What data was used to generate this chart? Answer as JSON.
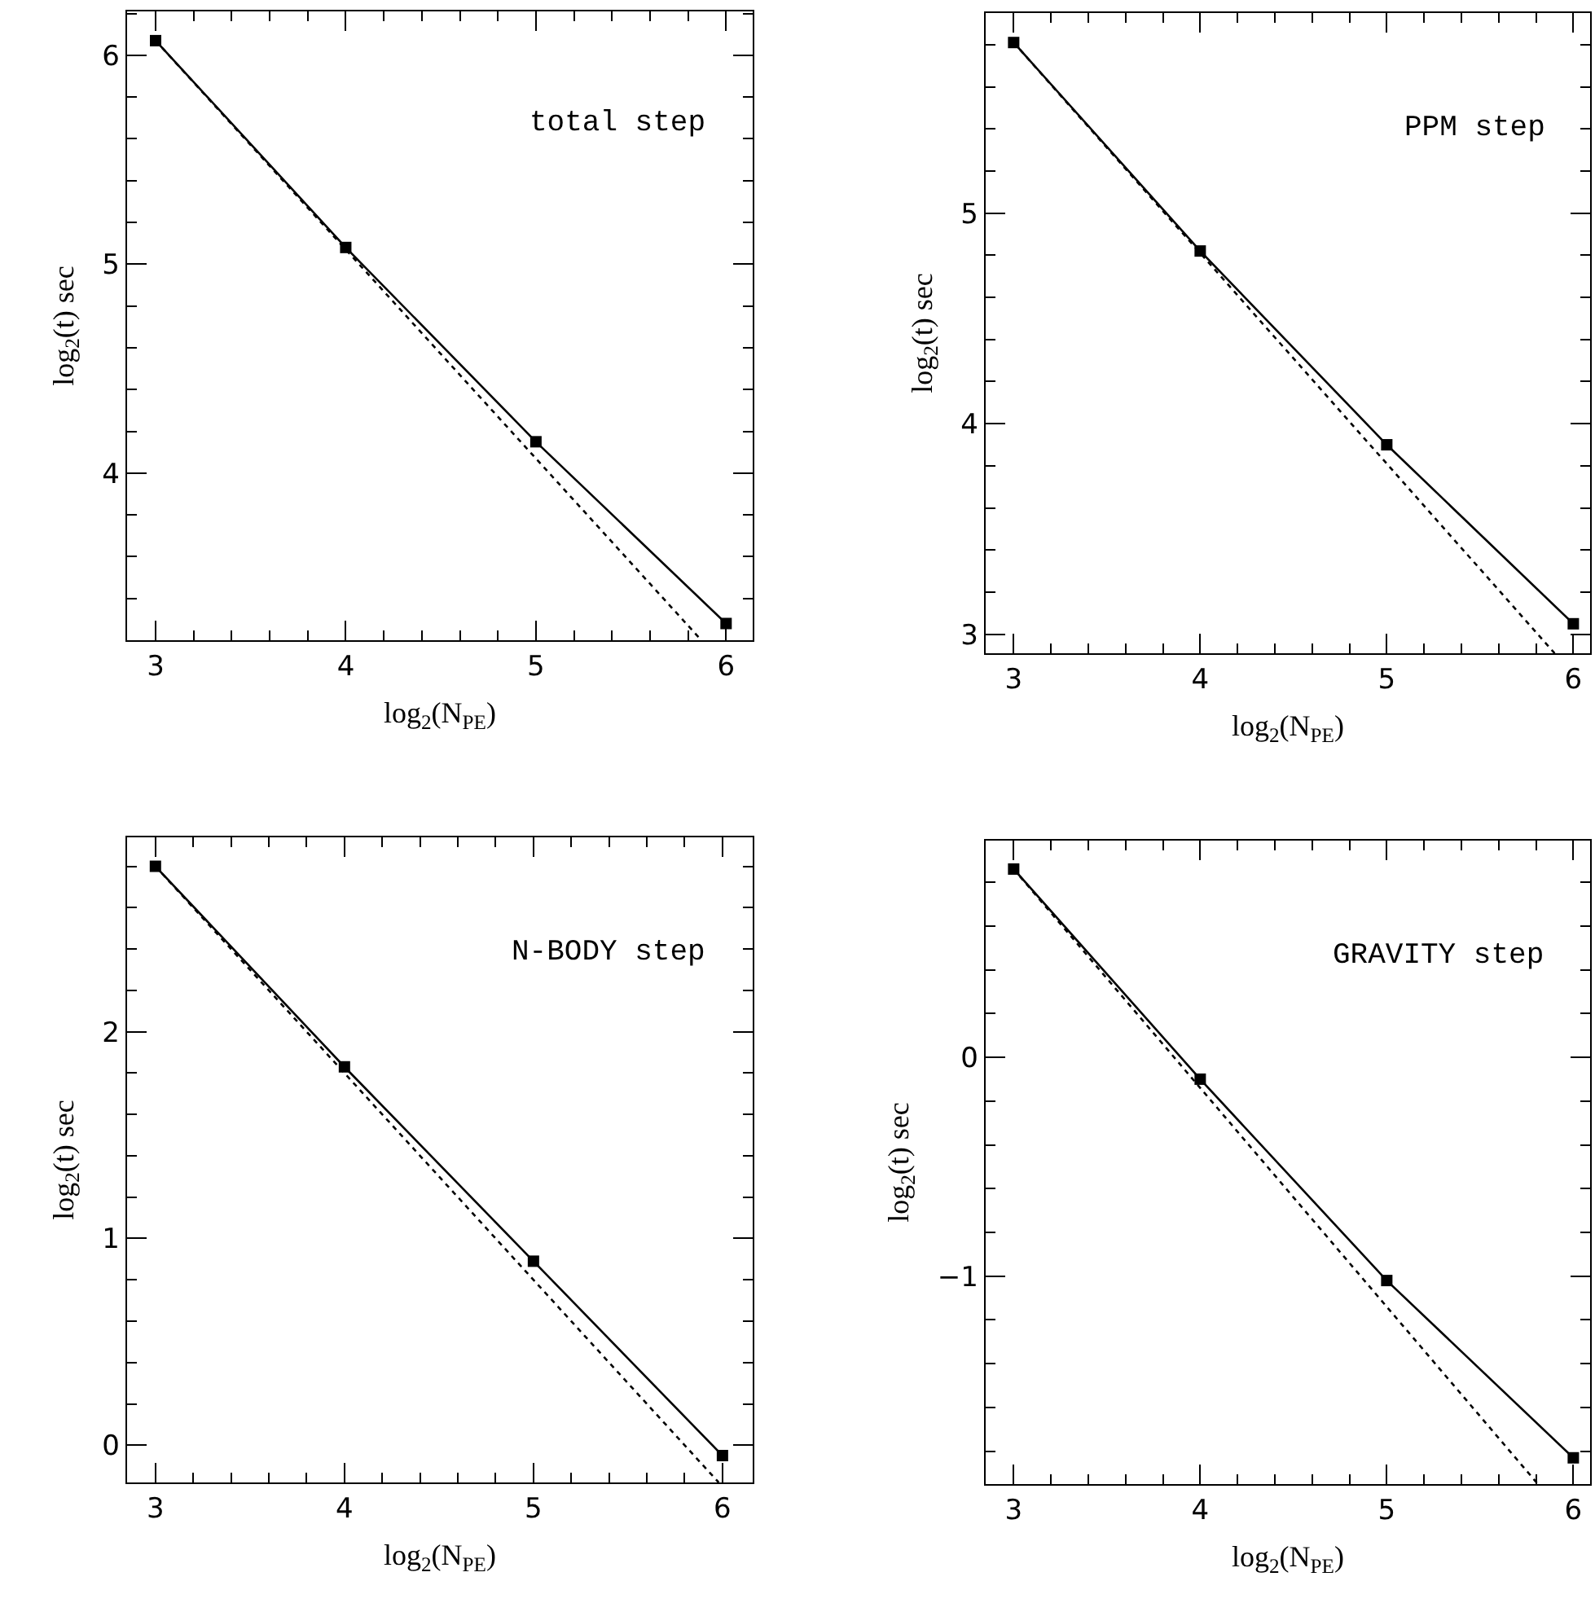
{
  "chart_data": [
    {
      "type": "line",
      "xlabel": "log$_{2}$(N$_{PE}$)",
      "ylabel": "log$_{2}$(t) sec",
      "annotations": [
        "total step"
      ],
      "series": [
        {
          "x": [
            3,
            4,
            5,
            6
          ],
          "values": [
            6.07,
            5.08,
            4.15,
            3.28
          ],
          "color": "#000000",
          "marker": "square",
          "line_style": "solid"
        },
        {
          "x": [
            3,
            5.87
          ],
          "values": [
            6.07,
            3.2
          ],
          "color": "#000000",
          "marker": "none",
          "line_style": "dotted"
        }
      ],
      "xlim": [
        2.85,
        6.14
      ],
      "ylim": [
        3.2,
        6.21
      ],
      "xticks": [
        3,
        4,
        5,
        6,
        {
          "value": 3.2,
          "label": null
        },
        {
          "value": 3.4,
          "label": null
        },
        {
          "value": 3.6,
          "label": null
        },
        {
          "value": 3.8,
          "label": null
        },
        {
          "value": 4.2,
          "label": null
        },
        {
          "value": 4.4,
          "label": null
        },
        {
          "value": 4.6,
          "label": null
        },
        {
          "value": 4.8,
          "label": null
        },
        {
          "value": 5.2,
          "label": null
        },
        {
          "value": 5.4,
          "label": null
        },
        {
          "value": 5.6,
          "label": null
        },
        {
          "value": 5.8,
          "label": null
        }
      ],
      "yticks": [
        4,
        5,
        6,
        {
          "value": 3.4,
          "label": null
        },
        {
          "value": 3.6,
          "label": null
        },
        {
          "value": 3.8,
          "label": null
        },
        {
          "value": 4.2,
          "label": null
        },
        {
          "value": 4.4,
          "label": null
        },
        {
          "value": 4.6,
          "label": null
        },
        {
          "value": 4.8,
          "label": null
        },
        {
          "value": 5.2,
          "label": null
        },
        {
          "value": 5.4,
          "label": null
        },
        {
          "value": 5.6,
          "label": null
        },
        {
          "value": 5.8,
          "label": null
        },
        {
          "value": 6.2,
          "label": null
        }
      ]
    },
    {
      "type": "line",
      "xlabel": "log$_{2}$(N$_{PE}$)",
      "ylabel": "log$_{2}$(t) sec",
      "annotations": [
        "PPM step"
      ],
      "series": [
        {
          "x": [
            3,
            4,
            5,
            6
          ],
          "values": [
            5.81,
            4.82,
            3.9,
            3.05
          ],
          "color": "#000000",
          "marker": "square",
          "line_style": "solid"
        },
        {
          "x": [
            3,
            5.9
          ],
          "values": [
            5.81,
            2.91
          ],
          "color": "#000000",
          "marker": "none",
          "line_style": "dotted"
        }
      ],
      "xlim": [
        2.85,
        6.09
      ],
      "ylim": [
        2.91,
        5.95
      ],
      "xticks": [
        3,
        4,
        5,
        6,
        {
          "value": 3.2,
          "label": null
        },
        {
          "value": 3.4,
          "label": null
        },
        {
          "value": 3.6,
          "label": null
        },
        {
          "value": 3.8,
          "label": null
        },
        {
          "value": 4.2,
          "label": null
        },
        {
          "value": 4.4,
          "label": null
        },
        {
          "value": 4.6,
          "label": null
        },
        {
          "value": 4.8,
          "label": null
        },
        {
          "value": 5.2,
          "label": null
        },
        {
          "value": 5.4,
          "label": null
        },
        {
          "value": 5.6,
          "label": null
        },
        {
          "value": 5.8,
          "label": null
        }
      ],
      "yticks": [
        3,
        4,
        5,
        {
          "value": 3.2,
          "label": null
        },
        {
          "value": 3.4,
          "label": null
        },
        {
          "value": 3.6,
          "label": null
        },
        {
          "value": 3.8,
          "label": null
        },
        {
          "value": 4.2,
          "label": null
        },
        {
          "value": 4.4,
          "label": null
        },
        {
          "value": 4.6,
          "label": null
        },
        {
          "value": 4.8,
          "label": null
        },
        {
          "value": 5.2,
          "label": null
        },
        {
          "value": 5.4,
          "label": null
        },
        {
          "value": 5.6,
          "label": null
        },
        {
          "value": 5.8,
          "label": null
        }
      ]
    },
    {
      "type": "line",
      "xlabel": "log$_{2}$(N$_{PE}$)",
      "ylabel": "log$_{2}$(t) sec",
      "annotations": [
        "N-BODY step"
      ],
      "series": [
        {
          "x": [
            3,
            4,
            5,
            6
          ],
          "values": [
            2.8,
            1.83,
            0.89,
            -0.05
          ],
          "color": "#000000",
          "marker": "square",
          "line_style": "solid"
        },
        {
          "x": [
            3,
            5.98
          ],
          "values": [
            2.8,
            -0.18
          ],
          "color": "#000000",
          "marker": "none",
          "line_style": "dotted"
        }
      ],
      "xlim": [
        2.85,
        6.16
      ],
      "ylim": [
        -0.18,
        2.94
      ],
      "xticks": [
        3,
        4,
        5,
        6,
        {
          "value": 3.2,
          "label": null
        },
        {
          "value": 3.4,
          "label": null
        },
        {
          "value": 3.6,
          "label": null
        },
        {
          "value": 3.8,
          "label": null
        },
        {
          "value": 4.2,
          "label": null
        },
        {
          "value": 4.4,
          "label": null
        },
        {
          "value": 4.6,
          "label": null
        },
        {
          "value": 4.8,
          "label": null
        },
        {
          "value": 5.2,
          "label": null
        },
        {
          "value": 5.4,
          "label": null
        },
        {
          "value": 5.6,
          "label": null
        },
        {
          "value": 5.8,
          "label": null
        }
      ],
      "yticks": [
        0,
        1,
        2,
        {
          "value": 0.2,
          "label": null
        },
        {
          "value": 0.4,
          "label": null
        },
        {
          "value": 0.6,
          "label": null
        },
        {
          "value": 0.8,
          "label": null
        },
        {
          "value": 1.2,
          "label": null
        },
        {
          "value": 1.4,
          "label": null
        },
        {
          "value": 1.6,
          "label": null
        },
        {
          "value": 1.8,
          "label": null
        },
        {
          "value": 2.2,
          "label": null
        },
        {
          "value": 2.4,
          "label": null
        },
        {
          "value": 2.6,
          "label": null
        },
        {
          "value": 2.8,
          "label": null
        }
      ]
    },
    {
      "type": "line",
      "xlabel": "log$_{2}$(N$_{PE}$)",
      "ylabel": "log$_{2}$(t) sec",
      "annotations": [
        "GRAVITY step"
      ],
      "series": [
        {
          "x": [
            3,
            4,
            5,
            6
          ],
          "values": [
            0.86,
            -0.1,
            -1.02,
            -1.83
          ],
          "color": "#000000",
          "marker": "square",
          "line_style": "solid"
        },
        {
          "x": [
            3,
            5.81
          ],
          "values": [
            0.86,
            -1.95
          ],
          "color": "#000000",
          "marker": "none",
          "line_style": "dotted"
        }
      ],
      "xlim": [
        2.85,
        6.09
      ],
      "ylim": [
        -1.95,
        0.99
      ],
      "xticks": [
        3,
        4,
        5,
        6,
        {
          "value": 3.2,
          "label": null
        },
        {
          "value": 3.4,
          "label": null
        },
        {
          "value": 3.6,
          "label": null
        },
        {
          "value": 3.8,
          "label": null
        },
        {
          "value": 4.2,
          "label": null
        },
        {
          "value": 4.4,
          "label": null
        },
        {
          "value": 4.6,
          "label": null
        },
        {
          "value": 4.8,
          "label": null
        },
        {
          "value": 5.2,
          "label": null
        },
        {
          "value": 5.4,
          "label": null
        },
        {
          "value": 5.6,
          "label": null
        },
        {
          "value": 5.8,
          "label": null
        }
      ],
      "yticks": [
        -1,
        0,
        {
          "value": -1.8,
          "label": null
        },
        {
          "value": -1.6,
          "label": null
        },
        {
          "value": -1.4,
          "label": null
        },
        {
          "value": -1.2,
          "label": null
        },
        {
          "value": -0.8,
          "label": null
        },
        {
          "value": -0.6,
          "label": null
        },
        {
          "value": -0.4,
          "label": null
        },
        {
          "value": -0.2,
          "label": null
        },
        {
          "value": 0.2,
          "label": null
        },
        {
          "value": 0.4,
          "label": null
        },
        {
          "value": 0.6,
          "label": null
        },
        {
          "value": 0.8,
          "label": null
        }
      ]
    }
  ]
}
